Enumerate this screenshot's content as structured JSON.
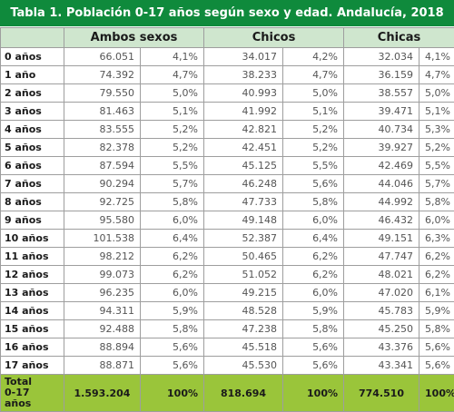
{
  "title": "Tabla 1. Población 0-17 años según sexo y edad. Andalucía, 2018",
  "headers": {
    "corner": "",
    "ambos": "Ambos sexos",
    "chicos": "Chicos",
    "chicas": "Chicas"
  },
  "rows": [
    {
      "age": "0 años",
      "ambos": "66.051",
      "ambos_pct": "4,1%",
      "chicos": "34.017",
      "chicos_pct": "4,2%",
      "chicas": "32.034",
      "chicas_pct": "4,1%"
    },
    {
      "age": "1 año",
      "ambos": "74.392",
      "ambos_pct": "4,7%",
      "chicos": "38.233",
      "chicos_pct": "4,7%",
      "chicas": "36.159",
      "chicas_pct": "4,7%"
    },
    {
      "age": "2 años",
      "ambos": "79.550",
      "ambos_pct": "5,0%",
      "chicos": "40.993",
      "chicos_pct": "5,0%",
      "chicas": "38.557",
      "chicas_pct": "5,0%"
    },
    {
      "age": "3 años",
      "ambos": "81.463",
      "ambos_pct": "5,1%",
      "chicos": "41.992",
      "chicos_pct": "5,1%",
      "chicas": "39.471",
      "chicas_pct": "5,1%"
    },
    {
      "age": "4 años",
      "ambos": "83.555",
      "ambos_pct": "5,2%",
      "chicos": "42.821",
      "chicos_pct": "5,2%",
      "chicas": "40.734",
      "chicas_pct": "5,3%"
    },
    {
      "age": "5 años",
      "ambos": "82.378",
      "ambos_pct": "5,2%",
      "chicos": "42.451",
      "chicos_pct": "5,2%",
      "chicas": "39.927",
      "chicas_pct": "5,2%"
    },
    {
      "age": "6 años",
      "ambos": "87.594",
      "ambos_pct": "5,5%",
      "chicos": "45.125",
      "chicos_pct": "5,5%",
      "chicas": "42.469",
      "chicas_pct": "5,5%"
    },
    {
      "age": "7 años",
      "ambos": "90.294",
      "ambos_pct": "5,7%",
      "chicos": "46.248",
      "chicos_pct": "5,6%",
      "chicas": "44.046",
      "chicas_pct": "5,7%"
    },
    {
      "age": "8 años",
      "ambos": "92.725",
      "ambos_pct": "5,8%",
      "chicos": "47.733",
      "chicos_pct": "5,8%",
      "chicas": "44.992",
      "chicas_pct": "5,8%"
    },
    {
      "age": "9 años",
      "ambos": "95.580",
      "ambos_pct": "6,0%",
      "chicos": "49.148",
      "chicos_pct": "6,0%",
      "chicas": "46.432",
      "chicas_pct": "6,0%"
    },
    {
      "age": "10 años",
      "ambos": "101.538",
      "ambos_pct": "6,4%",
      "chicos": "52.387",
      "chicos_pct": "6,4%",
      "chicas": "49.151",
      "chicas_pct": "6,3%"
    },
    {
      "age": "11 años",
      "ambos": "98.212",
      "ambos_pct": "6,2%",
      "chicos": "50.465",
      "chicos_pct": "6,2%",
      "chicas": "47.747",
      "chicas_pct": "6,2%"
    },
    {
      "age": "12 años",
      "ambos": "99.073",
      "ambos_pct": "6,2%",
      "chicos": "51.052",
      "chicos_pct": "6,2%",
      "chicas": "48.021",
      "chicas_pct": "6,2%"
    },
    {
      "age": "13 años",
      "ambos": "96.235",
      "ambos_pct": "6,0%",
      "chicos": "49.215",
      "chicos_pct": "6,0%",
      "chicas": "47.020",
      "chicas_pct": "6,1%"
    },
    {
      "age": "14 años",
      "ambos": "94.311",
      "ambos_pct": "5,9%",
      "chicos": "48.528",
      "chicos_pct": "5,9%",
      "chicas": "45.783",
      "chicas_pct": "5,9%"
    },
    {
      "age": "15 años",
      "ambos": "92.488",
      "ambos_pct": "5,8%",
      "chicos": "47.238",
      "chicos_pct": "5,8%",
      "chicas": "45.250",
      "chicas_pct": "5,8%"
    },
    {
      "age": "16 años",
      "ambos": "88.894",
      "ambos_pct": "5,6%",
      "chicos": "45.518",
      "chicos_pct": "5,6%",
      "chicas": "43.376",
      "chicas_pct": "5,6%"
    },
    {
      "age": "17 años",
      "ambos": "88.871",
      "ambos_pct": "5,6%",
      "chicos": "45.530",
      "chicos_pct": "5,6%",
      "chicas": "43.341",
      "chicas_pct": "5,6%"
    }
  ],
  "total": {
    "age_line1": "Total",
    "age_line2": "0-17 años",
    "ambos": "1.593.204",
    "ambos_pct": "100%",
    "chicos": "818.694",
    "chicos_pct": "100%",
    "chicas": "774.510",
    "chicas_pct": "100%"
  },
  "colors": {
    "title_bg": "#0f8a3c",
    "header_bg": "#cfe6ce",
    "total_bg": "#9ac53a"
  }
}
